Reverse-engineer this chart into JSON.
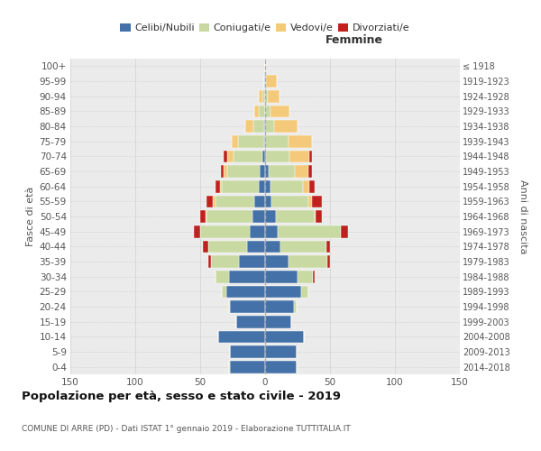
{
  "age_groups": [
    "0-4",
    "5-9",
    "10-14",
    "15-19",
    "20-24",
    "25-29",
    "30-34",
    "35-39",
    "40-44",
    "45-49",
    "50-54",
    "55-59",
    "60-64",
    "65-69",
    "70-74",
    "75-79",
    "80-84",
    "85-89",
    "90-94",
    "95-99",
    "100+"
  ],
  "birth_years": [
    "2014-2018",
    "2009-2013",
    "2004-2008",
    "1999-2003",
    "1994-1998",
    "1989-1993",
    "1984-1988",
    "1979-1983",
    "1974-1978",
    "1969-1973",
    "1964-1968",
    "1959-1963",
    "1954-1958",
    "1949-1953",
    "1944-1948",
    "1939-1943",
    "1934-1938",
    "1929-1933",
    "1924-1928",
    "1919-1923",
    "≤ 1918"
  ],
  "males_celibi": [
    27,
    27,
    36,
    22,
    27,
    30,
    28,
    20,
    14,
    12,
    10,
    8,
    5,
    4,
    2,
    1,
    1,
    0,
    0,
    1,
    0
  ],
  "males_coniugati": [
    1,
    0,
    0,
    0,
    1,
    3,
    10,
    22,
    30,
    38,
    35,
    30,
    28,
    25,
    22,
    20,
    8,
    5,
    2,
    0,
    0
  ],
  "males_vedovi": [
    0,
    0,
    0,
    0,
    0,
    0,
    0,
    0,
    0,
    0,
    1,
    2,
    2,
    3,
    5,
    5,
    6,
    3,
    3,
    0,
    0
  ],
  "males_divorziati": [
    0,
    0,
    0,
    0,
    0,
    0,
    0,
    2,
    4,
    5,
    4,
    5,
    3,
    2,
    3,
    0,
    0,
    0,
    0,
    0,
    0
  ],
  "females_nubili": [
    24,
    24,
    30,
    20,
    22,
    28,
    25,
    18,
    12,
    10,
    8,
    5,
    4,
    3,
    1,
    0,
    0,
    0,
    0,
    0,
    0
  ],
  "females_coniugate": [
    0,
    0,
    0,
    0,
    2,
    5,
    12,
    30,
    35,
    48,
    30,
    28,
    25,
    20,
    18,
    18,
    7,
    4,
    2,
    1,
    0
  ],
  "females_vedove": [
    0,
    0,
    0,
    0,
    0,
    0,
    0,
    0,
    0,
    0,
    1,
    3,
    5,
    10,
    15,
    18,
    18,
    15,
    9,
    8,
    1
  ],
  "females_divorziate": [
    0,
    0,
    0,
    0,
    0,
    0,
    1,
    2,
    3,
    6,
    5,
    8,
    4,
    3,
    2,
    0,
    0,
    0,
    0,
    0,
    0
  ],
  "color_celibi": "#4472a8",
  "color_coniugati": "#c8d9a2",
  "color_vedovi": "#f5c97a",
  "color_divorziati": "#c0211e",
  "xlim": 150,
  "title": "Popolazione per età, sesso e stato civile - 2019",
  "subtitle": "COMUNE DI ARRE (PD) - Dati ISTAT 1° gennaio 2019 - Elaborazione TUTTITALIA.IT",
  "ylabel_left": "Fasce di età",
  "ylabel_right": "Anni di nascita",
  "label_femmine": "Femmine",
  "legend_labels": [
    "Celibi/Nubili",
    "Coniugati/e",
    "Vedovi/e",
    "Divorziati/e"
  ],
  "bg_color": "#ebebeb",
  "grid_color": "#d0d0d0"
}
